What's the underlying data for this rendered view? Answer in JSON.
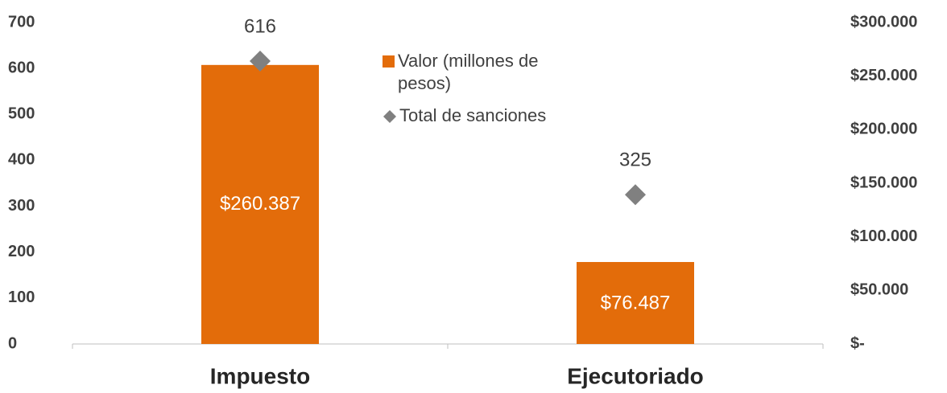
{
  "chart_data": {
    "type": "bar",
    "categories": [
      "Impuesto",
      "Ejecutoriado"
    ],
    "series": [
      {
        "name": "Valor (millones de pesos)",
        "color": "#E36C0A",
        "axis": "y2",
        "values": [
          260387,
          76487
        ],
        "value_labels": [
          "$260.387",
          "$76.487"
        ]
      },
      {
        "name": "Total de sanciones",
        "color": "#808080",
        "type": "scatter",
        "marker": "diamond",
        "values": [
          616,
          325
        ]
      }
    ],
    "ylim": [
      0,
      700
    ],
    "yticks": [
      0,
      100,
      200,
      300,
      400,
      500,
      600,
      700
    ],
    "y2lim": [
      0,
      300000
    ],
    "y2ticks": [
      {
        "value": 0,
        "label": "$-"
      },
      {
        "value": 50000,
        "label": "$50.000"
      },
      {
        "value": 100000,
        "label": "$100.000"
      },
      {
        "value": 150000,
        "label": "$150.000"
      },
      {
        "value": 200000,
        "label": "$200.000"
      },
      {
        "value": 250000,
        "label": "$250.000"
      },
      {
        "value": 300000,
        "label": "$300.000"
      }
    ],
    "grid": false
  }
}
